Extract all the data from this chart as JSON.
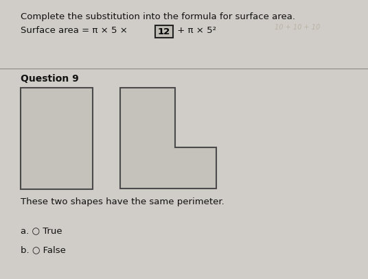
{
  "bg_color": "#d0cdc8",
  "line1": "Complete the substitution into the formula for surface area.",
  "line2_pre": "Surface area = π × 5 × ",
  "line2_boxed": "12",
  "line2_post": " + π × 5²",
  "question_label": "Question 9",
  "shapes_text": "These two shapes have the same perimeter.",
  "option_a": "a. ○ True",
  "option_b": "b. ○ False",
  "faint_note": "10 + 10 + 10",
  "font_color": "#111111",
  "border_color": "#4a4a4a",
  "shape_fill": "#c5c2bc",
  "divider_color": "#888884",
  "box_fill": "#c0bdb7"
}
